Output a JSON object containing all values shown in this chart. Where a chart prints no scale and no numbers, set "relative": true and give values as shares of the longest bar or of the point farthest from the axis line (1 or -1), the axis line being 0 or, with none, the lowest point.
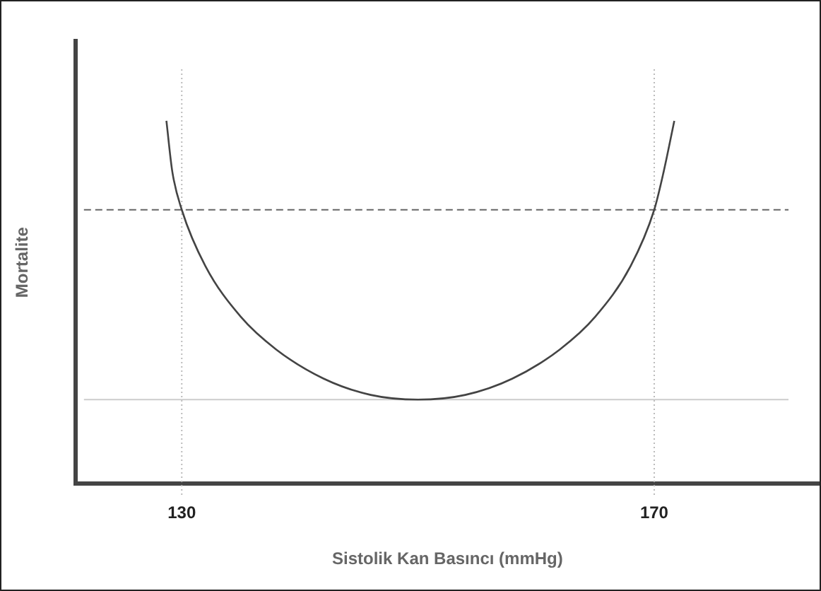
{
  "chart_data": {
    "type": "line",
    "xlabel": "Sistolik Kan Basıncı (mmHg)",
    "ylabel": "Mortalite",
    "relative": true,
    "x": [
      128.7,
      129.2,
      130,
      132,
      135,
      138,
      142,
      146,
      150,
      154,
      158,
      162,
      165,
      168,
      170,
      170.8,
      171.7
    ],
    "series": [
      {
        "color": "#444444",
        "values": [
          1.0,
          0.86,
          0.755,
          0.6,
          0.46,
          0.37,
          0.29,
          0.245,
          0.232,
          0.245,
          0.29,
          0.37,
          0.46,
          0.6,
          0.755,
          0.86,
          1.0
        ]
      }
    ],
    "xlim": [
      121,
      184
    ],
    "xticks": [
      130,
      170
    ],
    "tick_labels": "x",
    "marker": "none",
    "line_style": "solid",
    "legend": false,
    "grid": false,
    "ref_lines": [
      {
        "axis": "x",
        "value": 130,
        "color": "#bbbbbb",
        "line_style": "dotted"
      },
      {
        "axis": "x",
        "value": 170,
        "color": "#bbbbbb",
        "line_style": "dotted"
      },
      {
        "axis": "y",
        "value": 0.755,
        "color": "#666666",
        "line_style": "dashed"
      },
      {
        "axis": "y",
        "value": 0.232,
        "color": "#cccccc",
        "line_style": "solid"
      }
    ]
  }
}
